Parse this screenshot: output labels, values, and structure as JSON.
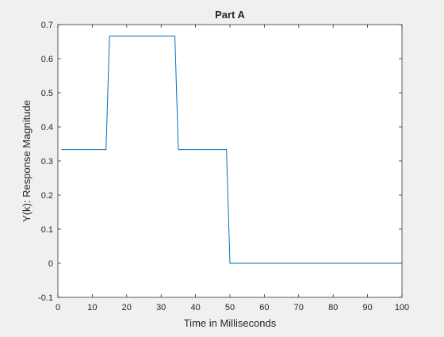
{
  "chart_data": {
    "type": "line",
    "title": "Part A",
    "xlabel": "Time in Milliseconds",
    "ylabel": "Y(k): Response Magnitude",
    "xlim": [
      0,
      100
    ],
    "ylim": [
      -0.1,
      0.7
    ],
    "xticks": [
      0,
      10,
      20,
      30,
      40,
      50,
      60,
      70,
      80,
      90,
      100
    ],
    "yticks": [
      -0.1,
      0,
      0.1,
      0.2,
      0.3,
      0.4,
      0.5,
      0.6,
      0.7
    ],
    "xtick_labels": [
      "0",
      "10",
      "20",
      "30",
      "40",
      "50",
      "60",
      "70",
      "80",
      "90",
      "100"
    ],
    "ytick_labels": [
      "-0.1",
      "0",
      "0.1",
      "0.2",
      "0.3",
      "0.4",
      "0.5",
      "0.6",
      "0.7"
    ],
    "grid": false,
    "series": [
      {
        "color": "#0072bd",
        "x": [
          1,
          14,
          15,
          34,
          35,
          49,
          50,
          100
        ],
        "y": [
          0.3333,
          0.3333,
          0.6667,
          0.6667,
          0.3333,
          0.3333,
          0,
          0
        ]
      }
    ]
  }
}
